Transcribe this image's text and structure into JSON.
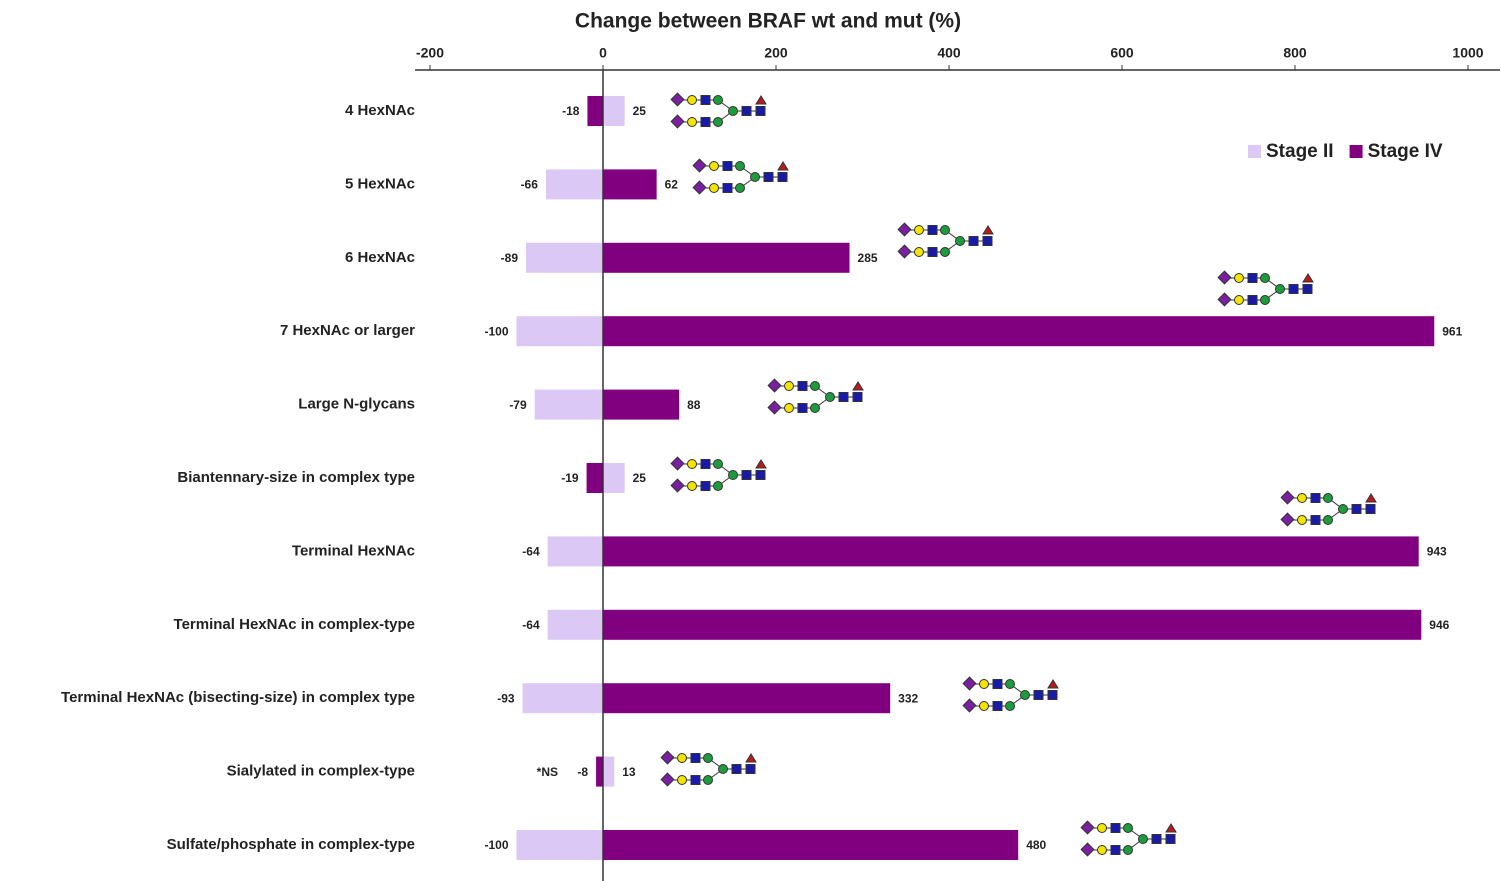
{
  "chart_data": {
    "type": "bar",
    "orientation": "horizontal",
    "title": "Change between BRAF wt and mut (%)",
    "categories": [
      "4 HexNAc",
      "5 HexNAc",
      "6 HexNAc",
      "7 HexNAc or larger",
      "Large N-glycans",
      "Biantennary-size in complex type",
      "Terminal HexNAc",
      "Terminal HexNAc in complex-type",
      "Terminal HexNAc (bisecting-size) in complex type",
      "Sialylated in complex-type",
      "Sulfate/phosphate in complex-type"
    ],
    "series": [
      {
        "name": "Stage II",
        "color": "#dcc8f4",
        "values": [
          25,
          -66,
          -89,
          -100,
          -79,
          25,
          -64,
          -64,
          -93,
          13,
          -100
        ]
      },
      {
        "name": "Stage IV",
        "color": "#800080",
        "values": [
          -18,
          62,
          285,
          961,
          88,
          -19,
          943,
          946,
          332,
          -8,
          480
        ]
      }
    ],
    "annotation": "*NS",
    "xlim": [
      -200,
      1000
    ],
    "xticks": [
      -200,
      0,
      200,
      400,
      600,
      800,
      1000
    ],
    "legend": "upper right"
  }
}
